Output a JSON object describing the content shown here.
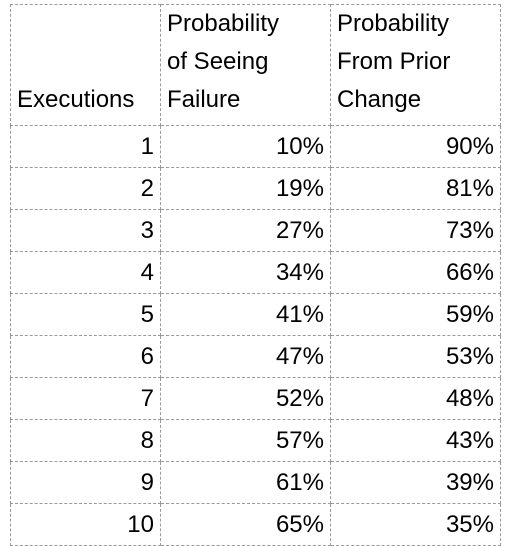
{
  "table": {
    "headers": [
      [
        "Executions"
      ],
      [
        "Probability",
        "of Seeing",
        "Failure"
      ],
      [
        "Probability",
        "From Prior",
        "Change"
      ]
    ],
    "rows": [
      [
        "1",
        "10%",
        "90%"
      ],
      [
        "2",
        "19%",
        "81%"
      ],
      [
        "3",
        "27%",
        "73%"
      ],
      [
        "4",
        "34%",
        "66%"
      ],
      [
        "5",
        "41%",
        "59%"
      ],
      [
        "6",
        "47%",
        "53%"
      ],
      [
        "7",
        "52%",
        "48%"
      ],
      [
        "8",
        "57%",
        "43%"
      ],
      [
        "9",
        "61%",
        "39%"
      ],
      [
        "10",
        "65%",
        "35%"
      ]
    ]
  }
}
